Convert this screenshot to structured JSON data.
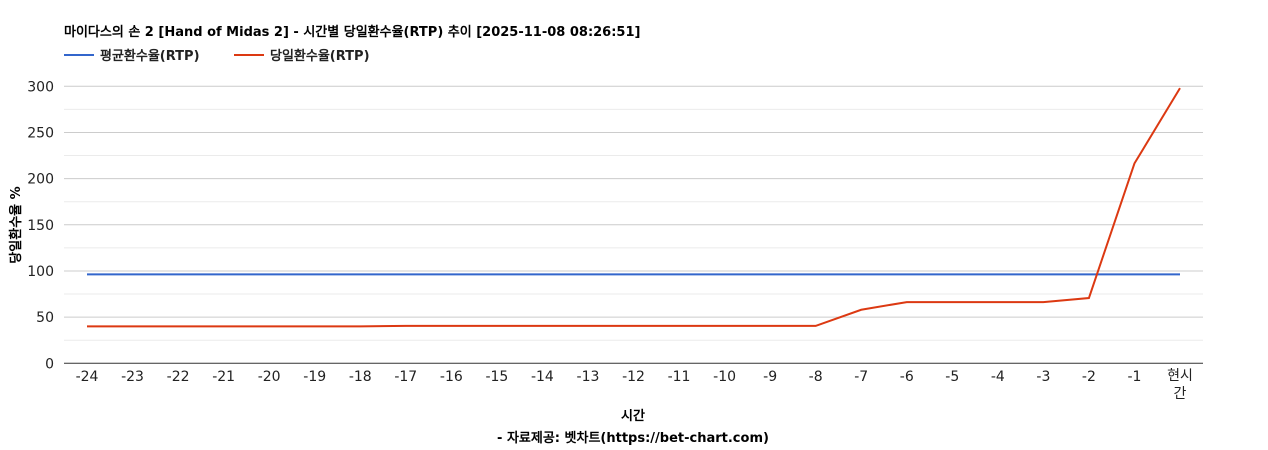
{
  "chart_data": {
    "type": "line",
    "title": "마이다스의 손 2 [Hand of Midas 2] - 시간별 당일환수율(RTP) 추이 [2025-11-08 08:26:51]",
    "xlabel": "시간",
    "ylabel": "당일환수율 %",
    "source": "- 자료제공: 벳차트(https://bet-chart.com)",
    "categories": [
      "-24",
      "-23",
      "-22",
      "-21",
      "-20",
      "-19",
      "-18",
      "-17",
      "-16",
      "-15",
      "-14",
      "-13",
      "-12",
      "-11",
      "-10",
      "-9",
      "-8",
      "-7",
      "-6",
      "-5",
      "-4",
      "-3",
      "-2",
      "-1",
      "현시간"
    ],
    "ylim": [
      0,
      300
    ],
    "yticks": [
      0,
      50,
      100,
      150,
      200,
      250,
      300
    ],
    "grid": true,
    "legend_position": "top-left",
    "series": [
      {
        "name": "평균환수율(RTP)",
        "color": "#3366cc",
        "values": [
          96.3,
          96.3,
          96.3,
          96.3,
          96.3,
          96.3,
          96.3,
          96.3,
          96.3,
          96.3,
          96.3,
          96.3,
          96.3,
          96.3,
          96.3,
          96.3,
          96.3,
          96.3,
          96.3,
          96.3,
          96.3,
          96.3,
          96.3,
          96.3,
          96.3
        ]
      },
      {
        "name": "당일환수율(RTP)",
        "color": "#dc3912",
        "values": [
          40,
          40,
          40,
          40,
          40,
          40,
          40,
          40.5,
          40.5,
          40.5,
          40.5,
          40.5,
          40.5,
          40.5,
          40.5,
          40.5,
          40.5,
          58,
          66.3,
          66.3,
          66.3,
          66.3,
          70.7,
          216.5,
          298
        ]
      }
    ]
  }
}
